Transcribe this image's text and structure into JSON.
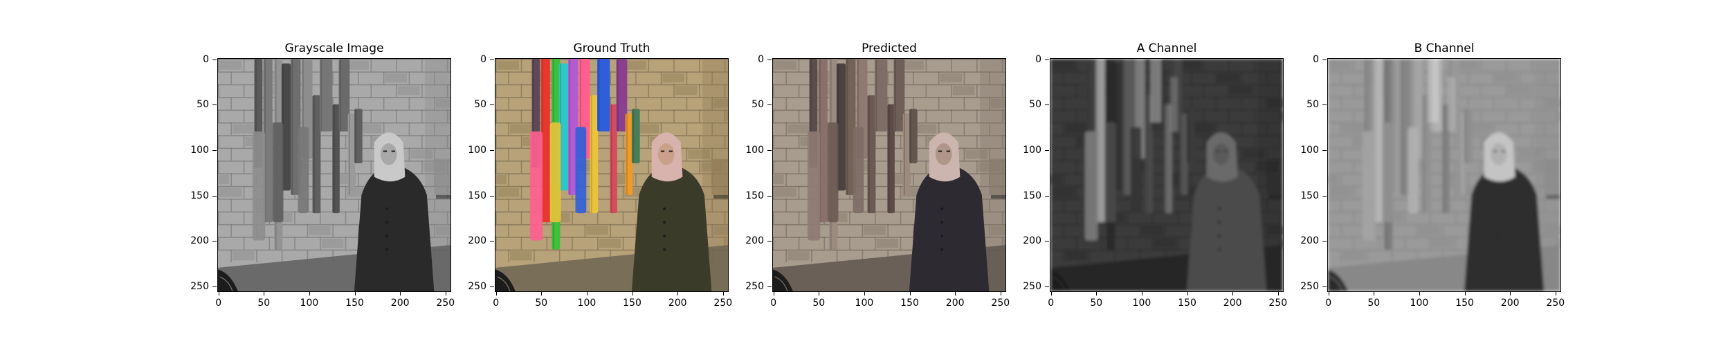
{
  "figure": {
    "panels": [
      {
        "title": "Grayscale Image",
        "mode": "gray",
        "y_ticks": [
          "0",
          "50",
          "100",
          "150",
          "200",
          "250"
        ],
        "x_ticks": [
          "0",
          "50",
          "100",
          "150",
          "200",
          "250"
        ]
      },
      {
        "title": "Ground Truth",
        "mode": "color",
        "y_ticks": [
          "0",
          "50",
          "100",
          "150",
          "200",
          "250"
        ],
        "x_ticks": [
          "0",
          "50",
          "100",
          "150",
          "200",
          "250"
        ]
      },
      {
        "title": "Predicted",
        "mode": "predicted",
        "y_ticks": [
          "0",
          "50",
          "100",
          "150",
          "200",
          "250"
        ],
        "x_ticks": [
          "0",
          "50",
          "100",
          "150",
          "200",
          "250"
        ]
      },
      {
        "title": "A Channel",
        "mode": "achannel",
        "y_ticks": [
          "0",
          "50",
          "100",
          "150",
          "200",
          "250"
        ],
        "x_ticks": [
          "0",
          "50",
          "100",
          "150",
          "200",
          "250"
        ]
      },
      {
        "title": "B Channel",
        "mode": "bchannel",
        "y_ticks": [
          "0",
          "50",
          "100",
          "150",
          "200",
          "250"
        ],
        "x_ticks": [
          "0",
          "50",
          "100",
          "150",
          "200",
          "250"
        ]
      }
    ]
  }
}
